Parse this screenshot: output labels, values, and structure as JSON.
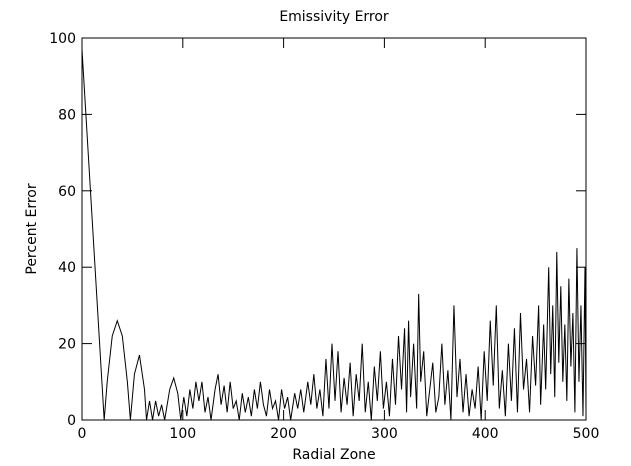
{
  "chart_data": {
    "type": "line",
    "title": "Emissivity Error",
    "x_label": "Radial Zone",
    "y_label": "Percent Error",
    "xlim": [
      0,
      500
    ],
    "ylim": [
      0,
      100
    ],
    "xticks": [
      0,
      100,
      200,
      300,
      400,
      500
    ],
    "yticks": [
      0,
      20,
      40,
      60,
      80,
      100
    ],
    "color": "#000000",
    "x": [
      0,
      22,
      25,
      30,
      35,
      40,
      45,
      48,
      52,
      57,
      62,
      64,
      67,
      70,
      73,
      76,
      79,
      82,
      87,
      91,
      95,
      98,
      101,
      104,
      107,
      110,
      113,
      116,
      119,
      122,
      125,
      128,
      132,
      135,
      138,
      141,
      144,
      147,
      150,
      153,
      156,
      159,
      162,
      165,
      168,
      171,
      174,
      177,
      180,
      183,
      186,
      189,
      192,
      195,
      198,
      201,
      204,
      207,
      211,
      214,
      217,
      220,
      224,
      227,
      230,
      233,
      236,
      239,
      242,
      245,
      248,
      251,
      254,
      257,
      260,
      263,
      266,
      269,
      272,
      275,
      278,
      281,
      284,
      287,
      290,
      293,
      296,
      299,
      302,
      305,
      308,
      311,
      314,
      317,
      320,
      322,
      324,
      326,
      329,
      332,
      334,
      336,
      339,
      342,
      345,
      348,
      351,
      354,
      357,
      360,
      363,
      366,
      369,
      372,
      375,
      378,
      381,
      384,
      387,
      390,
      393,
      396,
      399,
      402,
      405,
      408,
      411,
      414,
      417,
      420,
      423,
      426,
      429,
      432,
      435,
      438,
      441,
      444,
      447,
      450,
      453,
      455,
      458,
      460,
      463,
      465,
      467,
      469,
      471,
      473,
      475,
      477,
      479,
      481,
      483,
      485,
      487,
      489,
      491,
      493,
      495,
      497,
      499,
      500
    ],
    "values": [
      97,
      0,
      10,
      22,
      26,
      22,
      10,
      0,
      12,
      17,
      8,
      0,
      5,
      0,
      5,
      1,
      4,
      0,
      8,
      11,
      7,
      0,
      6,
      1,
      8,
      3,
      10,
      5,
      10,
      2,
      6,
      0,
      8,
      12,
      4,
      9,
      2,
      10,
      3,
      5,
      0,
      7,
      2,
      6,
      1,
      8,
      3,
      10,
      4,
      1,
      8,
      3,
      5,
      0,
      8,
      3,
      6,
      0,
      7,
      3,
      8,
      2,
      10,
      4,
      12,
      3,
      8,
      1,
      16,
      3,
      20,
      5,
      18,
      2,
      11,
      4,
      15,
      1,
      12,
      5,
      20,
      2,
      10,
      0,
      14,
      5,
      18,
      3,
      10,
      1,
      16,
      4,
      22,
      8,
      24,
      2,
      26,
      6,
      20,
      3,
      33,
      10,
      18,
      1,
      8,
      15,
      2,
      6,
      20,
      4,
      13,
      0,
      30,
      6,
      16,
      2,
      12,
      1,
      8,
      3,
      14,
      0,
      18,
      5,
      26,
      9,
      30,
      3,
      13,
      1,
      20,
      5,
      24,
      2,
      28,
      8,
      16,
      2,
      22,
      9,
      30,
      4,
      25,
      8,
      40,
      12,
      30,
      6,
      44,
      15,
      35,
      10,
      25,
      5,
      37,
      14,
      28,
      2,
      45,
      10,
      30,
      1,
      40,
      2
    ]
  }
}
